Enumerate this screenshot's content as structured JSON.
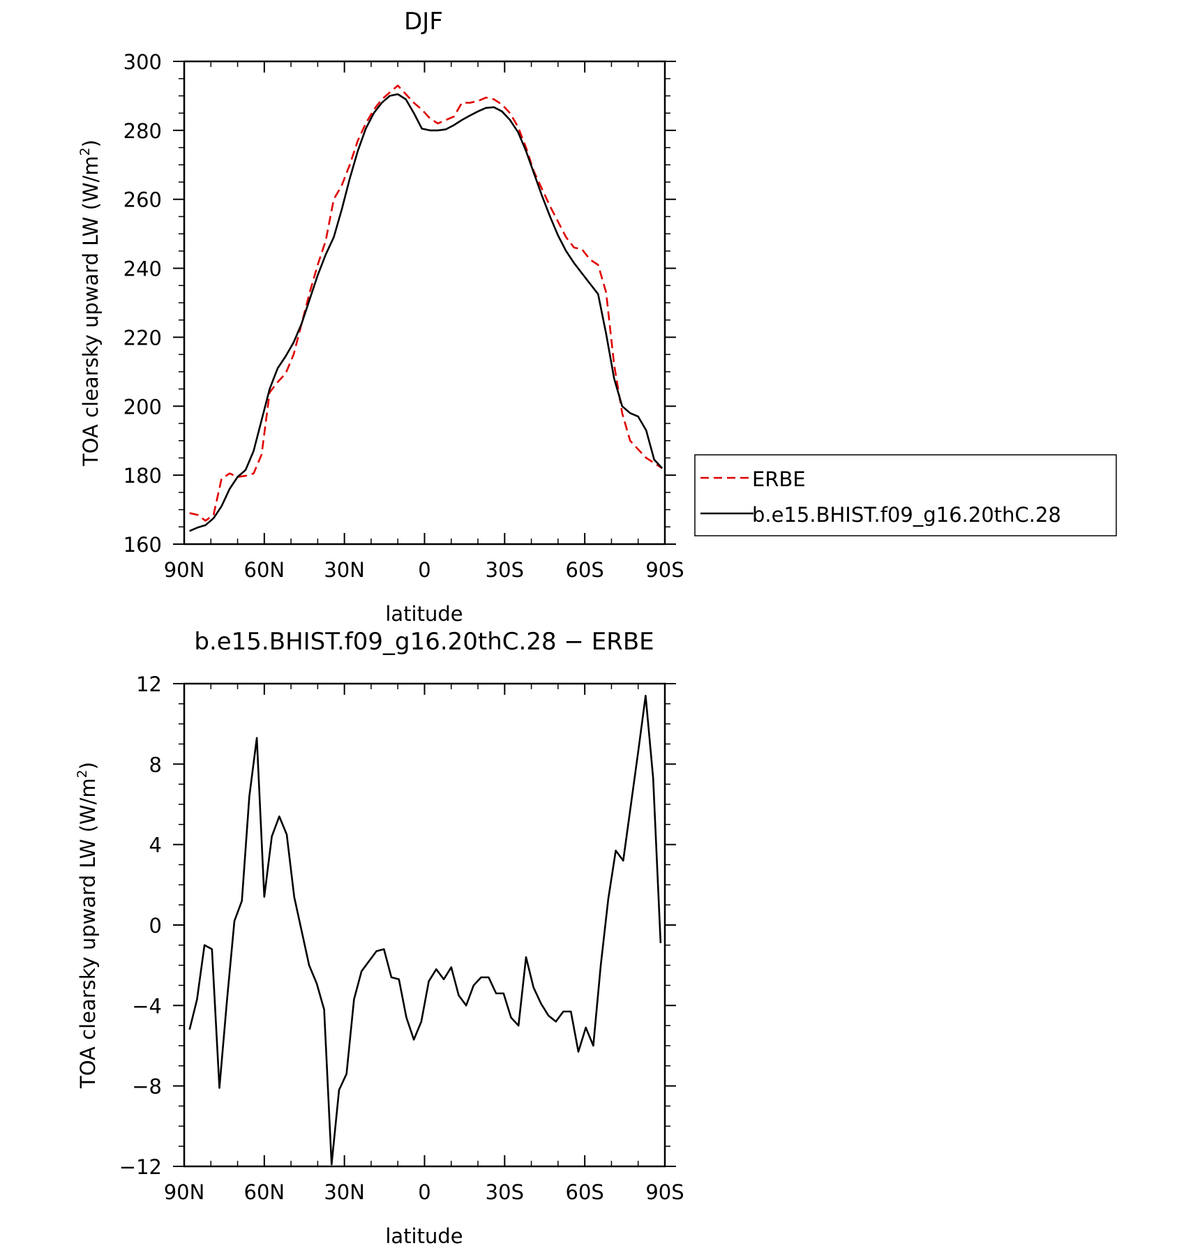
{
  "chart_data": [
    {
      "type": "line",
      "title": "DJF",
      "xlabel": "latitude",
      "ylabel": "TOA clearsky upward LW (W/m",
      "ylabel_sup": "2",
      "ylabel_end": ")",
      "xlim": [
        90,
        -90
      ],
      "ylim": [
        160,
        300
      ],
      "xticks": [
        90,
        60,
        30,
        0,
        -30,
        -60,
        -90
      ],
      "xtick_labels": [
        "90N",
        "60N",
        "30N",
        "0",
        "30S",
        "60S",
        "90S"
      ],
      "yticks": [
        160,
        180,
        200,
        220,
        240,
        260,
        280,
        300
      ],
      "ytick_labels": [
        "160",
        "180",
        "200",
        "220",
        "240",
        "260",
        "280",
        "300"
      ],
      "grid": false,
      "legend_position": "right",
      "series": [
        {
          "name": "ERBE",
          "color": "#e00000",
          "dash": "dashed",
          "x": [
            88,
            85,
            82,
            79,
            76,
            73,
            70,
            67,
            64,
            61,
            58,
            55,
            52,
            49,
            46,
            43,
            40,
            37,
            34,
            31,
            28,
            25,
            22,
            19,
            16,
            13,
            10,
            7,
            4,
            1,
            -2,
            -5,
            -8,
            -11,
            -14,
            -17,
            -20,
            -23,
            -26,
            -29,
            -32,
            -35,
            -38,
            -41,
            -44,
            -47,
            -50,
            -53,
            -56,
            -59,
            -62,
            -65,
            -68,
            -71,
            -74,
            -77,
            -80,
            -83,
            -86,
            -89
          ],
          "y": [
            169,
            168.5,
            166.8,
            168.5,
            179,
            180.5,
            179.5,
            179.8,
            180.5,
            186,
            204,
            207,
            209.5,
            215,
            224,
            233,
            241,
            248,
            260,
            264,
            270,
            277,
            282,
            286,
            289,
            291,
            293,
            290.5,
            288,
            286,
            283.5,
            282,
            283,
            284,
            288,
            288,
            288.5,
            289.5,
            289,
            287.5,
            285,
            281,
            275,
            268,
            263,
            258,
            253.5,
            249,
            246,
            245.5,
            242.5,
            241,
            233,
            212,
            198,
            190,
            187.5,
            185,
            183.5,
            182
          ]
        },
        {
          "name": "b.e15.BHIST.f09_g16.20thC.28",
          "color": "#000000",
          "dash": "solid",
          "x": [
            88,
            85,
            82,
            79,
            76,
            73,
            70,
            67,
            64,
            61,
            58,
            55,
            52,
            49,
            46,
            43,
            40,
            37,
            34,
            31,
            28,
            25,
            22,
            19,
            16,
            13,
            10,
            7,
            4,
            1,
            -2,
            -5,
            -8,
            -11,
            -14,
            -17,
            -20,
            -23,
            -26,
            -29,
            -32,
            -35,
            -38,
            -41,
            -44,
            -47,
            -50,
            -53,
            -56,
            -59,
            -62,
            -65,
            -68,
            -71,
            -74,
            -77,
            -80,
            -83,
            -86,
            -89
          ],
          "y": [
            163.8,
            164.8,
            165.5,
            167.5,
            171,
            176,
            179.5,
            181.5,
            187,
            196,
            205,
            211,
            214.5,
            218.5,
            224,
            231,
            238,
            244,
            249,
            257,
            266,
            274,
            280.5,
            285,
            288,
            290,
            290.5,
            289,
            285,
            280.5,
            280,
            280,
            280.3,
            281.5,
            283,
            284.3,
            285.5,
            286.5,
            286.7,
            285.5,
            283,
            279.5,
            274,
            267.5,
            261,
            255,
            249.5,
            245,
            241.5,
            238.5,
            235.5,
            232.5,
            221,
            208,
            200,
            198,
            197,
            193,
            184.5,
            182
          ]
        }
      ]
    },
    {
      "type": "line",
      "title": "b.e15.BHIST.f09_g16.20thC.28 − ERBE",
      "xlabel": "latitude",
      "ylabel": "TOA clearsky upward LW (W/m",
      "ylabel_sup": "2",
      "ylabel_end": ")",
      "xlim": [
        90,
        -90
      ],
      "ylim": [
        -12,
        12
      ],
      "xticks": [
        90,
        60,
        30,
        0,
        -30,
        -60,
        -90
      ],
      "xtick_labels": [
        "90N",
        "60N",
        "30N",
        "0",
        "30S",
        "60S",
        "90S"
      ],
      "yticks": [
        -12,
        -8,
        -4,
        0,
        4,
        8,
        12
      ],
      "ytick_labels": [
        "−12",
        "−8",
        "−4",
        "0",
        "4",
        "8",
        "12"
      ],
      "grid": false,
      "series": [
        {
          "color": "#000000",
          "dash": "solid",
          "x": [
            88,
            85.2,
            82.4,
            79.6,
            76.8,
            74,
            71.2,
            68.4,
            65.6,
            62.8,
            60,
            57.2,
            54.4,
            51.6,
            48.8,
            46,
            43.2,
            40.4,
            37.6,
            34.8,
            32,
            29.2,
            26.4,
            23.6,
            20.8,
            18,
            15.2,
            12.4,
            9.6,
            6.8,
            4,
            1.2,
            -1.6,
            -4.4,
            -7.2,
            -10,
            -12.8,
            -15.6,
            -18.4,
            -21.2,
            -24,
            -26.8,
            -29.6,
            -32.4,
            -35.2,
            -38,
            -40.8,
            -43.6,
            -46.4,
            -49.2,
            -52,
            -54.8,
            -57.6,
            -60.4,
            -63.2,
            -66,
            -68.8,
            -71.6,
            -74.4,
            -77.2,
            -80,
            -82.8,
            -85.6,
            -88.4
          ],
          "y": [
            -5.2,
            -3.7,
            -1.0,
            -1.2,
            -8.1,
            -3.8,
            0.2,
            1.2,
            6.4,
            9.3,
            1.4,
            4.4,
            5.4,
            4.5,
            1.4,
            -0.3,
            -2.0,
            -2.9,
            -4.2,
            -11.9,
            -8.2,
            -7.4,
            -3.7,
            -2.3,
            -1.8,
            -1.3,
            -1.2,
            -2.6,
            -2.7,
            -4.6,
            -5.7,
            -4.8,
            -2.8,
            -2.2,
            -2.7,
            -2.1,
            -3.5,
            -4.0,
            -3.0,
            -2.6,
            -2.6,
            -3.4,
            -3.4,
            -4.6,
            -5.0,
            -1.6,
            -3.1,
            -3.9,
            -4.5,
            -4.8,
            -4.3,
            -4.3,
            -6.3,
            -5.1,
            -6.0,
            -2.0,
            1.3,
            3.7,
            3.2,
            5.9,
            8.6,
            11.4,
            7.3,
            -0.9
          ]
        }
      ]
    }
  ]
}
